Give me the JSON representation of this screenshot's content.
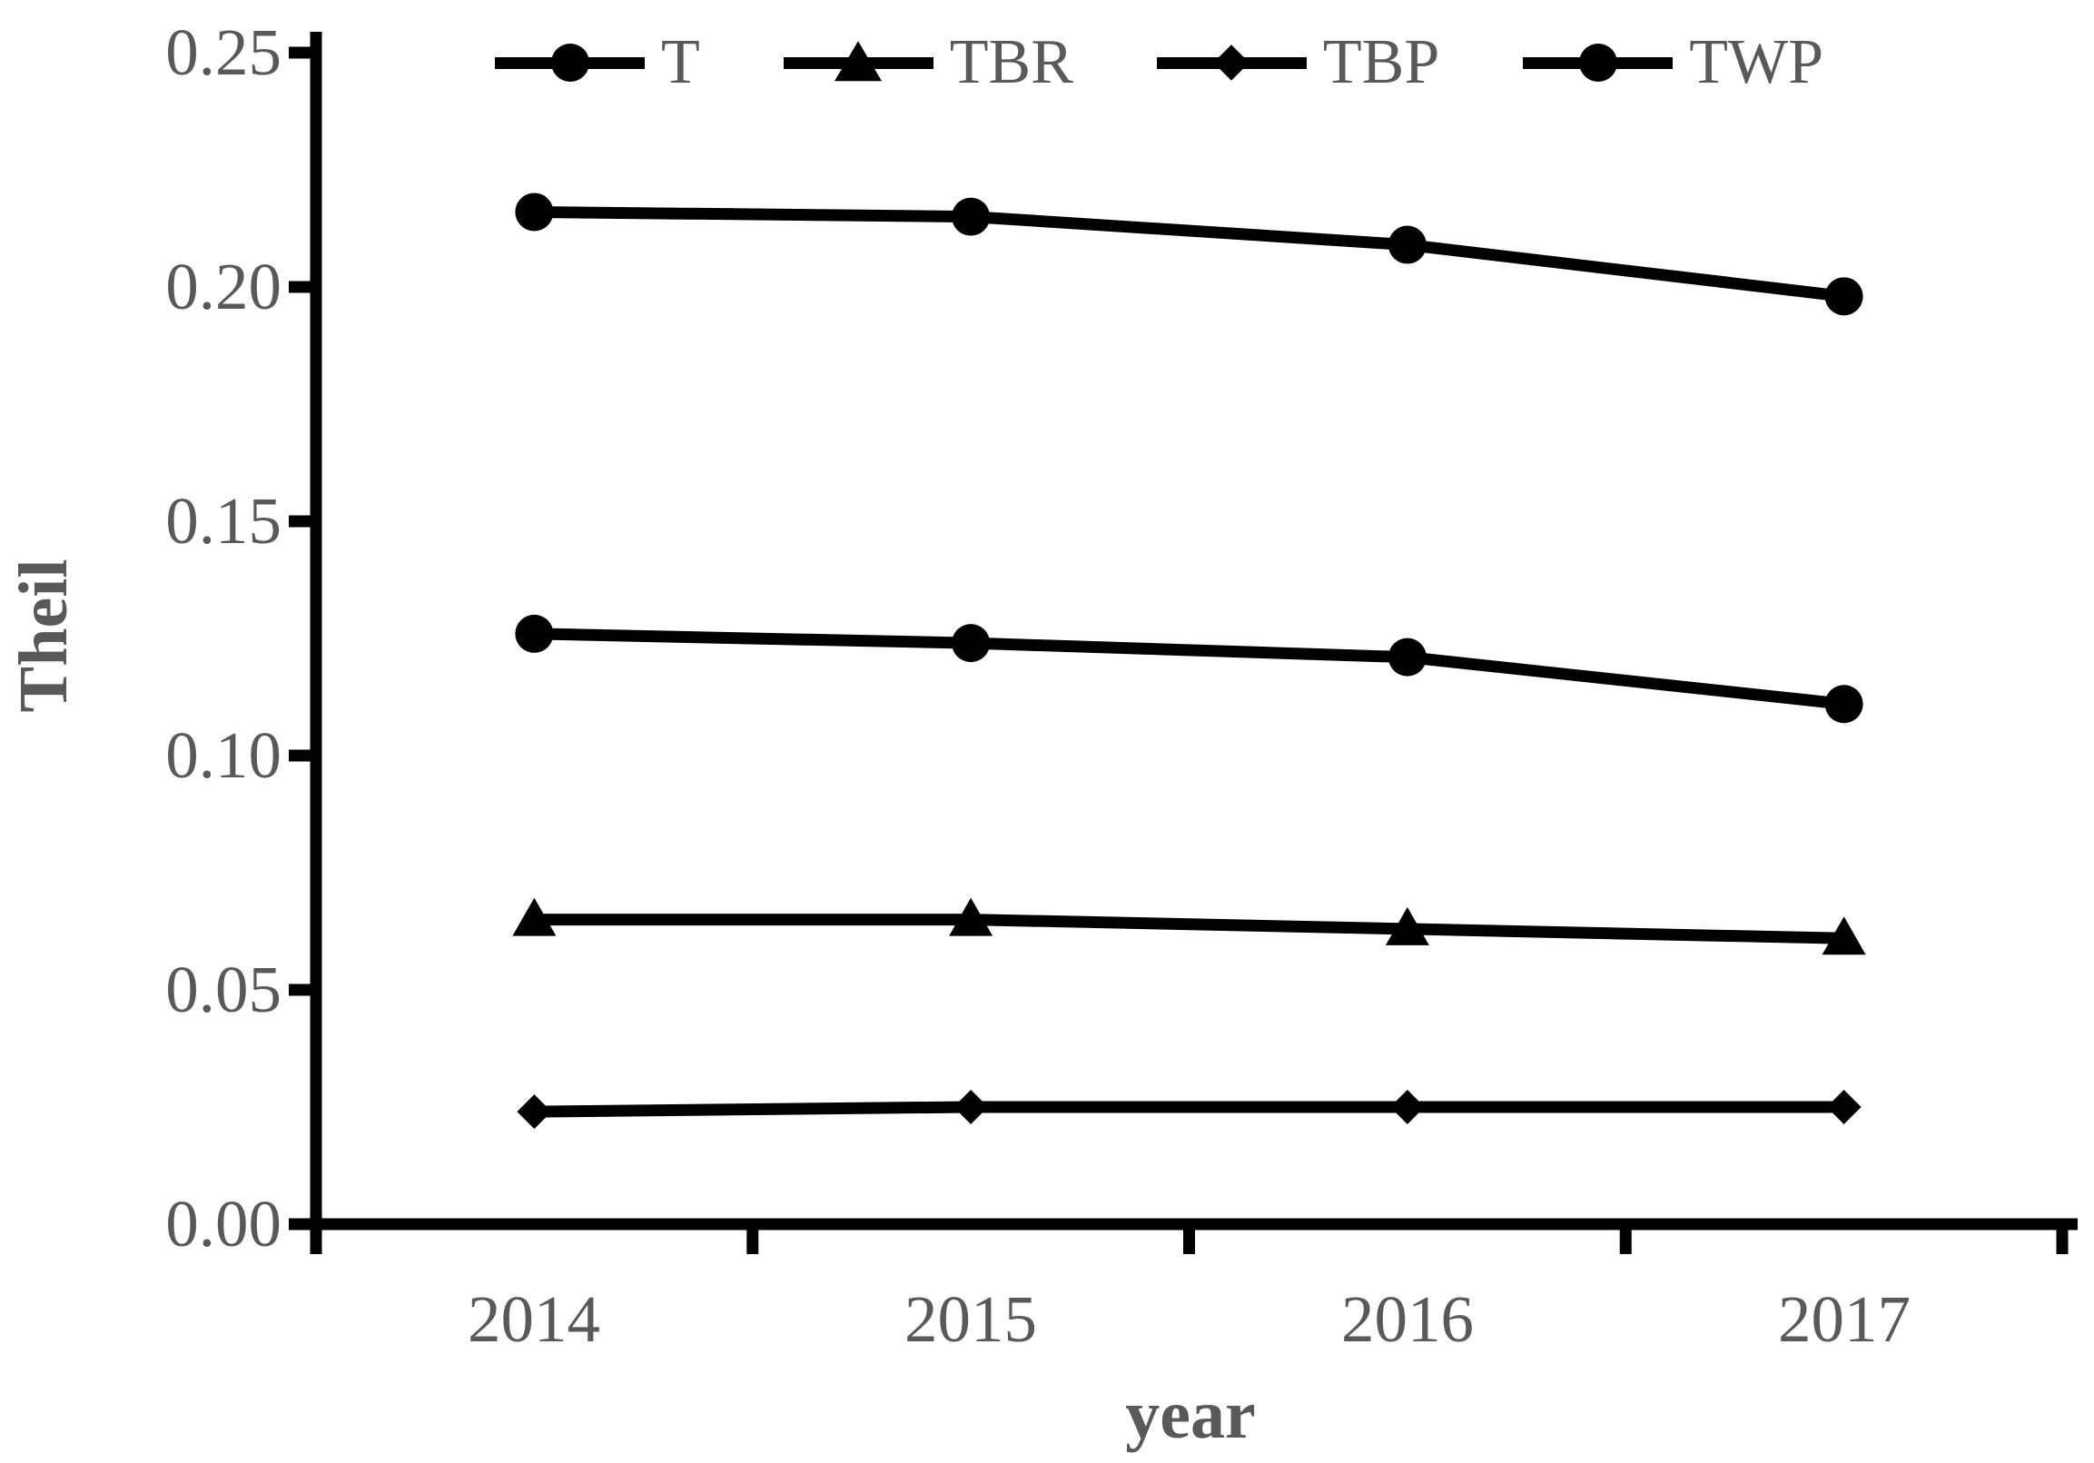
{
  "chart_data": {
    "type": "line",
    "title": "",
    "xlabel": "year",
    "ylabel": "Theil",
    "categories": [
      "2014",
      "2015",
      "2016",
      "2017"
    ],
    "series": [
      {
        "name": "T",
        "marker": "circle",
        "values": [
          0.216,
          0.215,
          0.209,
          0.198
        ]
      },
      {
        "name": "TBR",
        "marker": "triangle",
        "values": [
          0.065,
          0.065,
          0.063,
          0.061
        ]
      },
      {
        "name": "TBP",
        "marker": "diamond",
        "values": [
          0.024,
          0.025,
          0.025,
          0.025
        ]
      },
      {
        "name": "TWP",
        "marker": "circle",
        "values": [
          0.126,
          0.124,
          0.121,
          0.111
        ]
      }
    ],
    "ylim": [
      0,
      0.25
    ],
    "yticks": [
      "0.25",
      "0.20",
      "0.15",
      "0.10",
      "0.05",
      "0.00"
    ],
    "grid": false,
    "legend_position": "top",
    "line_color": "#000000",
    "marker_color": "#000000",
    "label_color": "#595959",
    "background_color": "#ffffff"
  }
}
